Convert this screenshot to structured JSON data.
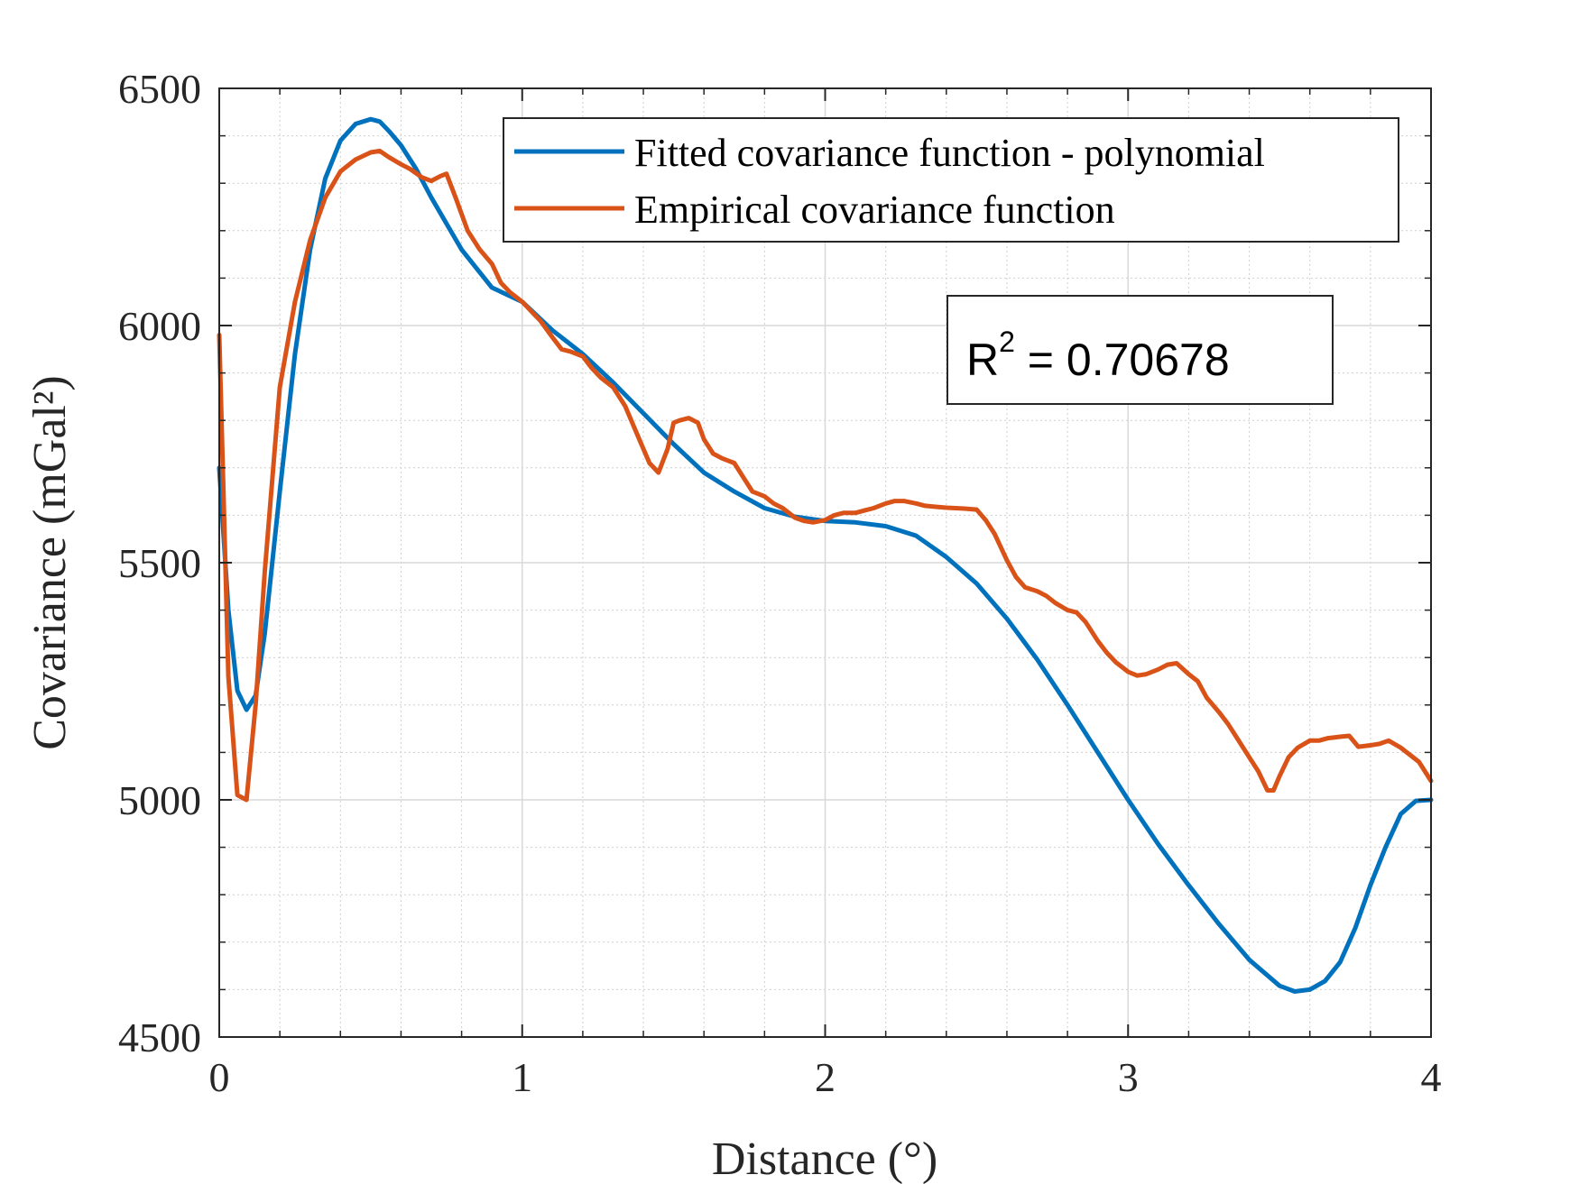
{
  "chart_data": {
    "type": "line",
    "xlabel": "Distance (°)",
    "ylabel": "Covariance (mGal²)",
    "xlim": [
      0,
      4
    ],
    "ylim": [
      4500,
      6500
    ],
    "xticks": [
      0,
      1,
      2,
      3,
      4
    ],
    "yticks": [
      4500,
      5000,
      5500,
      6000,
      6500
    ],
    "grid": true,
    "minor_grid": true,
    "legend_position": "top-right",
    "annotation": {
      "prefix": "R",
      "superscript": "2",
      "text": " = 0.70678"
    },
    "series": [
      {
        "name": "Fitted covariance function - polynomial",
        "color": "#0072BD",
        "x": [
          0,
          0.03,
          0.06,
          0.09,
          0.12,
          0.15,
          0.2,
          0.25,
          0.3,
          0.35,
          0.4,
          0.45,
          0.5,
          0.53,
          0.56,
          0.6,
          0.65,
          0.7,
          0.8,
          0.9,
          1.0,
          1.1,
          1.2,
          1.3,
          1.4,
          1.5,
          1.6,
          1.7,
          1.8,
          1.9,
          2.0,
          2.1,
          2.2,
          2.3,
          2.4,
          2.5,
          2.6,
          2.7,
          2.8,
          2.9,
          3.0,
          3.1,
          3.2,
          3.3,
          3.4,
          3.5,
          3.55,
          3.6,
          3.65,
          3.7,
          3.75,
          3.8,
          3.85,
          3.9,
          3.95,
          4.0
        ],
        "y": [
          5700,
          5400,
          5230,
          5190,
          5220,
          5350,
          5650,
          5940,
          6160,
          6310,
          6390,
          6425,
          6435,
          6430,
          6410,
          6380,
          6330,
          6270,
          6160,
          6080,
          6050,
          5990,
          5940,
          5880,
          5815,
          5750,
          5690,
          5650,
          5615,
          5597,
          5588,
          5585,
          5577,
          5557,
          5512,
          5456,
          5382,
          5296,
          5200,
          5100,
          5000,
          4906,
          4820,
          4738,
          4663,
          4608,
          4596,
          4600,
          4618,
          4658,
          4730,
          4820,
          4900,
          4970,
          4998,
          5000
        ]
      },
      {
        "name": "Empirical covariance function",
        "color": "#D95319",
        "x": [
          0,
          0.03,
          0.06,
          0.09,
          0.12,
          0.15,
          0.2,
          0.25,
          0.3,
          0.35,
          0.4,
          0.45,
          0.5,
          0.53,
          0.56,
          0.6,
          0.63,
          0.67,
          0.7,
          0.73,
          0.75,
          0.78,
          0.82,
          0.86,
          0.9,
          0.93,
          0.96,
          1.0,
          1.03,
          1.06,
          1.1,
          1.13,
          1.16,
          1.2,
          1.23,
          1.26,
          1.3,
          1.34,
          1.38,
          1.42,
          1.45,
          1.48,
          1.5,
          1.52,
          1.55,
          1.58,
          1.6,
          1.63,
          1.66,
          1.7,
          1.73,
          1.76,
          1.8,
          1.83,
          1.86,
          1.9,
          1.93,
          1.96,
          2.0,
          2.03,
          2.06,
          2.1,
          2.13,
          2.16,
          2.2,
          2.23,
          2.26,
          2.3,
          2.33,
          2.36,
          2.4,
          2.43,
          2.46,
          2.5,
          2.53,
          2.56,
          2.6,
          2.63,
          2.66,
          2.7,
          2.73,
          2.76,
          2.8,
          2.83,
          2.86,
          2.9,
          2.93,
          2.96,
          3.0,
          3.03,
          3.06,
          3.1,
          3.13,
          3.16,
          3.2,
          3.23,
          3.26,
          3.3,
          3.33,
          3.36,
          3.4,
          3.43,
          3.46,
          3.48,
          3.5,
          3.53,
          3.56,
          3.6,
          3.63,
          3.66,
          3.7,
          3.73,
          3.76,
          3.8,
          3.83,
          3.86,
          3.9,
          3.93,
          3.96,
          4.0
        ],
        "y": [
          5980,
          5260,
          5010,
          5000,
          5200,
          5480,
          5870,
          6050,
          6180,
          6270,
          6325,
          6350,
          6365,
          6368,
          6355,
          6340,
          6330,
          6312,
          6305,
          6315,
          6320,
          6270,
          6200,
          6160,
          6130,
          6090,
          6070,
          6050,
          6030,
          6010,
          5975,
          5950,
          5945,
          5935,
          5910,
          5890,
          5870,
          5830,
          5770,
          5710,
          5690,
          5740,
          5795,
          5800,
          5805,
          5795,
          5760,
          5730,
          5720,
          5710,
          5680,
          5650,
          5640,
          5625,
          5615,
          5595,
          5588,
          5585,
          5590,
          5600,
          5605,
          5605,
          5610,
          5615,
          5625,
          5630,
          5630,
          5625,
          5620,
          5618,
          5616,
          5615,
          5614,
          5612,
          5590,
          5560,
          5505,
          5470,
          5448,
          5440,
          5430,
          5415,
          5400,
          5395,
          5375,
          5335,
          5310,
          5290,
          5270,
          5262,
          5265,
          5275,
          5285,
          5288,
          5265,
          5250,
          5215,
          5185,
          5160,
          5130,
          5090,
          5060,
          5020,
          5020,
          5050,
          5090,
          5110,
          5125,
          5125,
          5130,
          5133,
          5135,
          5112,
          5115,
          5118,
          5125,
          5110,
          5095,
          5080,
          5040
        ]
      }
    ]
  }
}
